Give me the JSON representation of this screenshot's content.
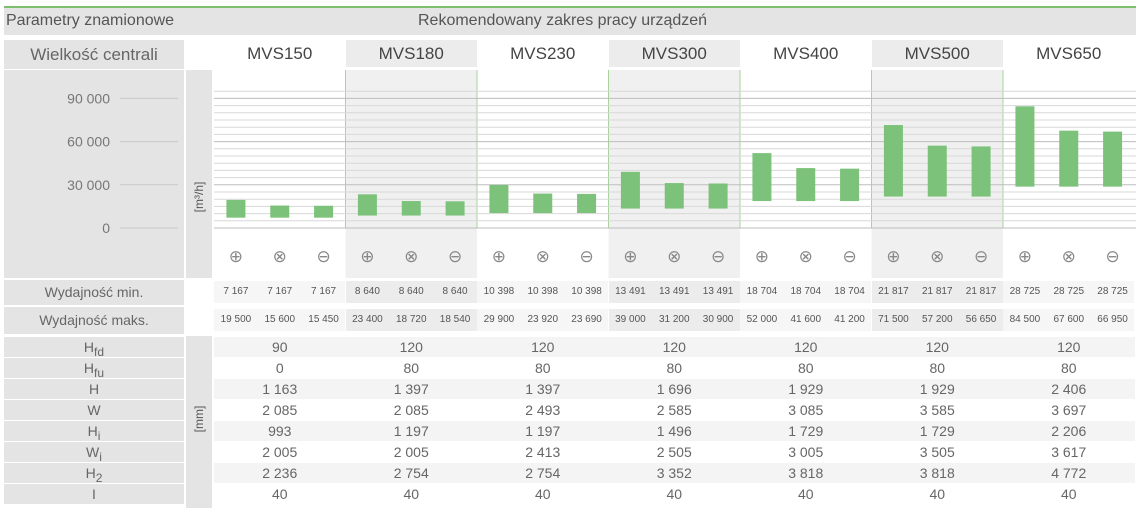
{
  "header": {
    "title_left": "Parametry znamionowe",
    "title_center": "Rekomendowany zakres pracy urządzeń",
    "size_label": "Wielkość centrali"
  },
  "models": [
    "MVS150",
    "MVS180",
    "MVS230",
    "MVS300",
    "MVS400",
    "MVS500",
    "MVS650"
  ],
  "variant_icons": [
    "plus-circle-icon",
    "cross-circle-icon",
    "minus-circle-icon"
  ],
  "variant_glyphs": [
    "⊕",
    "⊗",
    "⊖"
  ],
  "chart_data": {
    "type": "bar",
    "ylabel": "[m³/h]",
    "yticks": [
      "90 000",
      "60 000",
      "30 000",
      "0"
    ],
    "ytick_values": [
      90000,
      60000,
      30000,
      0
    ],
    "ylim": [
      0,
      100000
    ],
    "bar_color": "#7cc27a",
    "series": [
      {
        "model": "MVS150",
        "min": [
          7167,
          7167,
          7167
        ],
        "max": [
          19500,
          15600,
          15450
        ]
      },
      {
        "model": "MVS180",
        "min": [
          8640,
          8640,
          8640
        ],
        "max": [
          23400,
          18720,
          18540
        ]
      },
      {
        "model": "MVS230",
        "min": [
          10398,
          10398,
          10398
        ],
        "max": [
          29900,
          23920,
          23690
        ]
      },
      {
        "model": "MVS300",
        "min": [
          13491,
          13491,
          13491
        ],
        "max": [
          39000,
          31200,
          30900
        ]
      },
      {
        "model": "MVS400",
        "min": [
          18704,
          18704,
          18704
        ],
        "max": [
          52000,
          41600,
          41200
        ]
      },
      {
        "model": "MVS500",
        "min": [
          21817,
          21817,
          21817
        ],
        "max": [
          71500,
          57200,
          56650
        ]
      },
      {
        "model": "MVS650",
        "min": [
          28725,
          28725,
          28725
        ],
        "max": [
          84500,
          67600,
          66950
        ]
      }
    ]
  },
  "performance": {
    "min_label": "Wydajność min.",
    "max_label": "Wydajność maks.",
    "min_values": [
      "7 167",
      "7 167",
      "7 167",
      "8 640",
      "8 640",
      "8 640",
      "10 398",
      "10 398",
      "10 398",
      "13 491",
      "13 491",
      "13 491",
      "18 704",
      "18 704",
      "18 704",
      "21 817",
      "21 817",
      "21 817",
      "28 725",
      "28 725",
      "28 725"
    ],
    "max_values": [
      "19 500",
      "15 600",
      "15 450",
      "23 400",
      "18 720",
      "18 540",
      "29 900",
      "23 920",
      "23 690",
      "39 000",
      "31 200",
      "30 900",
      "52 000",
      "41 600",
      "41 200",
      "71 500",
      "57 200",
      "56 650",
      "84 500",
      "67 600",
      "66 950"
    ]
  },
  "dimensions": {
    "unit": "[mm]",
    "rows": [
      {
        "label": "H",
        "sub": "fd",
        "values": [
          "90",
          "120",
          "120",
          "120",
          "120",
          "120",
          "120"
        ]
      },
      {
        "label": "H",
        "sub": "fu",
        "values": [
          "0",
          "80",
          "80",
          "80",
          "80",
          "80",
          "80"
        ]
      },
      {
        "label": "H",
        "sub": "",
        "values": [
          "1 163",
          "1 397",
          "1 397",
          "1 696",
          "1 929",
          "1 929",
          "2 406"
        ]
      },
      {
        "label": "W",
        "sub": "",
        "values": [
          "2 085",
          "2 085",
          "2 493",
          "2 585",
          "3 085",
          "3 585",
          "3 697"
        ]
      },
      {
        "label": "H",
        "sub": "i",
        "values": [
          "993",
          "1 197",
          "1 197",
          "1 496",
          "1 729",
          "1 729",
          "2 206"
        ]
      },
      {
        "label": "W",
        "sub": "i",
        "values": [
          "2 005",
          "2 005",
          "2 413",
          "2 505",
          "3 005",
          "3 505",
          "3 617"
        ]
      },
      {
        "label": "H",
        "sub": "2",
        "values": [
          "2 236",
          "2 754",
          "2 754",
          "3 352",
          "3 818",
          "3 818",
          "4 772"
        ]
      },
      {
        "label": "I",
        "sub": "",
        "values": [
          "40",
          "40",
          "40",
          "40",
          "40",
          "40",
          "40"
        ]
      }
    ]
  }
}
